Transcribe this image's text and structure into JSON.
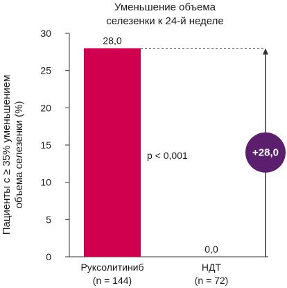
{
  "chart_data": {
    "type": "bar",
    "title_lines": [
      "Уменьшение объема",
      "селезенки к 24-й неделе"
    ],
    "ylabel_lines": [
      "Пациенты с ≥ 35% уменьшением",
      "объема селезенки (%)"
    ],
    "ylim": [
      0,
      30
    ],
    "yticks": [
      0,
      5,
      10,
      15,
      20,
      25,
      30
    ],
    "categories": [
      {
        "name": "Руксолитиниб",
        "n": "(n = 144)"
      },
      {
        "name": "НДТ",
        "n": "(n = 72)"
      }
    ],
    "values": [
      28.0,
      0.0
    ],
    "value_labels": [
      "28,0",
      "0,0"
    ],
    "bar_colors": [
      "#d0004f",
      "#d0004f"
    ],
    "pvalue": "p < 0,001",
    "difference": {
      "label": "+28,0",
      "color": "#5b1f6e"
    },
    "grid": false
  }
}
